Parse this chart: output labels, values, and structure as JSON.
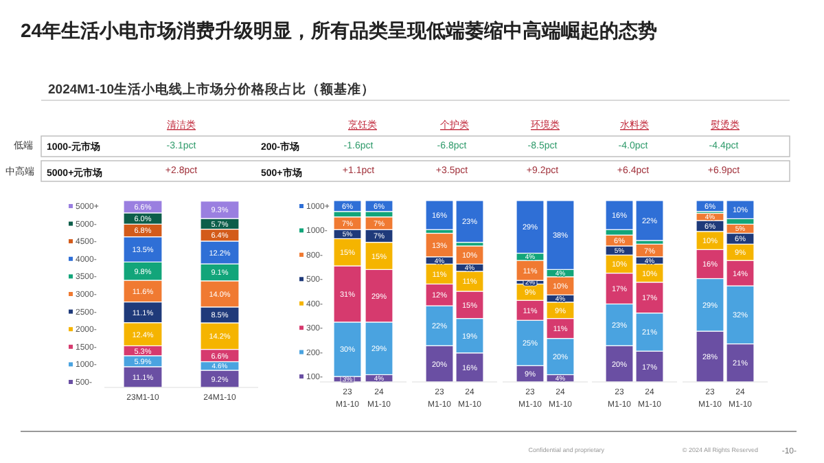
{
  "chart_data": [
    {
      "type": "other",
      "title": "24年生活小电市场消费升级明显，所有品类呈现低端萎缩中高端崛起的态势",
      "subtitle": "2024M1-10生活小电线上市场分价格段占比（额基准）",
      "annotations": [
        "低端",
        "中高端",
        "1000-元市场",
        "5000+元市场",
        "-3.1pct",
        "+2.8pct",
        "200-市场",
        "500+市场",
        "-1.6pct",
        "+1.1pct",
        "-6.8pct",
        "+3.5pct",
        "-8.5pct",
        "+9.2pct",
        "-4.0pct",
        "+6.4pct",
        "-4.4pct",
        "+6.9pct",
        "Confidential and proprietary",
        "© 2024 All Rights Reserved",
        "-10-"
      ]
    },
    {
      "type": "bar",
      "title": "清洁类",
      "categories": [
        "23M1-10",
        "24M1-10"
      ],
      "stacked": true,
      "legend": "left",
      "series": [
        {
          "name": "500-",
          "color": "#6a4fa3",
          "values": [
            11.1,
            9.2
          ],
          "value_labels": [
            "11.1%",
            "9.2%"
          ]
        },
        {
          "name": "1000-",
          "color": "#4aa3e0",
          "values": [
            5.9,
            4.6
          ],
          "value_labels": [
            "5.9%",
            "4.6%"
          ]
        },
        {
          "name": "1500-",
          "color": "#d63a6e",
          "values": [
            5.3,
            6.6
          ],
          "value_labels": [
            "5.3%",
            "6.6%"
          ]
        },
        {
          "name": "2000-",
          "color": "#f5b400",
          "values": [
            12.4,
            14.2
          ],
          "value_labels": [
            "12.4%",
            "14.2%"
          ]
        },
        {
          "name": "2500-",
          "color": "#1f3a7a",
          "values": [
            11.1,
            8.5
          ],
          "value_labels": [
            "11.1%",
            "8.5%"
          ]
        },
        {
          "name": "3000-",
          "color": "#f07a32",
          "values": [
            11.6,
            14.0
          ],
          "value_labels": [
            "11.6%",
            "14.0%"
          ]
        },
        {
          "name": "3500-",
          "color": "#12a57a",
          "values": [
            9.8,
            9.1
          ],
          "value_labels": [
            "9.8%",
            "9.1%"
          ]
        },
        {
          "name": "4000-",
          "color": "#2f6fd6",
          "values": [
            13.5,
            12.2
          ],
          "value_labels": [
            "13.5%",
            "12.2%"
          ]
        },
        {
          "name": "4500-",
          "color": "#d35b1a",
          "values": [
            6.8,
            6.4
          ],
          "value_labels": [
            "6.8%",
            "6.4%"
          ]
        },
        {
          "name": "5000-",
          "color": "#0d5e4a",
          "values": [
            6.0,
            5.7
          ],
          "value_labels": [
            "6.0%",
            "5.7%"
          ]
        },
        {
          "name": "5000+",
          "color": "#9a7fe0",
          "values": [
            6.6,
            9.3
          ],
          "value_labels": [
            "6.6%",
            "9.3%"
          ]
        }
      ]
    },
    {
      "type": "bar",
      "title": "烹饪类",
      "categories": [
        "23 M1-10",
        "24 M1-10"
      ],
      "stacked": true,
      "legend": "left",
      "series": [
        {
          "name": "100-",
          "color": "#6a4fa3",
          "values": [
            3,
            4
          ],
          "value_labels": [
            "3%",
            "4%"
          ]
        },
        {
          "name": "200-",
          "color": "#4aa3e0",
          "values": [
            30,
            29
          ],
          "value_labels": [
            "30%",
            "29%"
          ]
        },
        {
          "name": "300-",
          "color": "#d63a6e",
          "values": [
            31,
            29
          ],
          "value_labels": [
            "31%",
            "29%"
          ]
        },
        {
          "name": "400-",
          "color": "#f5b400",
          "values": [
            15,
            15
          ],
          "value_labels": [
            "15%",
            "15%"
          ]
        },
        {
          "name": "500-",
          "color": "#1f3a7a",
          "values": [
            5,
            7
          ],
          "value_labels": [
            "5%",
            "7%"
          ]
        },
        {
          "name": "800-",
          "color": "#f07a32",
          "values": [
            7,
            7
          ],
          "value_labels": [
            "7%",
            "7%"
          ]
        },
        {
          "name": "1000-",
          "color": "#12a57a",
          "values": [
            3,
            3
          ],
          "value_labels": [
            null,
            null
          ]
        },
        {
          "name": "1000+",
          "color": "#2f6fd6",
          "values": [
            6,
            6
          ],
          "value_labels": [
            "6%",
            "6%"
          ]
        }
      ]
    },
    {
      "type": "bar",
      "title": "个护类",
      "categories": [
        "23 M1-10",
        "24 M1-10"
      ],
      "stacked": true,
      "series": [
        {
          "color": "#6a4fa3",
          "values": [
            20,
            16
          ],
          "value_labels": [
            "20%",
            "16%"
          ]
        },
        {
          "color": "#4aa3e0",
          "values": [
            22,
            19
          ],
          "value_labels": [
            "22%",
            "19%"
          ]
        },
        {
          "color": "#d63a6e",
          "values": [
            12,
            15
          ],
          "value_labels": [
            "12%",
            "15%"
          ]
        },
        {
          "color": "#f5b400",
          "values": [
            11,
            11
          ],
          "value_labels": [
            "11%",
            "11%"
          ]
        },
        {
          "color": "#1f3a7a",
          "values": [
            4,
            4
          ],
          "value_labels": [
            "4%",
            "4%"
          ]
        },
        {
          "color": "#f07a32",
          "values": [
            13,
            10
          ],
          "value_labels": [
            "13%",
            "10%"
          ]
        },
        {
          "color": "#12a57a",
          "values": [
            2,
            2
          ],
          "value_labels": [
            null,
            null
          ]
        },
        {
          "color": "#2f6fd6",
          "values": [
            16,
            23
          ],
          "value_labels": [
            "16%",
            "23%"
          ]
        }
      ]
    },
    {
      "type": "bar",
      "title": "环境类",
      "categories": [
        "23 M1-10",
        "24 M1-10"
      ],
      "stacked": true,
      "series": [
        {
          "color": "#6a4fa3",
          "values": [
            9,
            4
          ],
          "value_labels": [
            "9%",
            "4%"
          ]
        },
        {
          "color": "#4aa3e0",
          "values": [
            25,
            20
          ],
          "value_labels": [
            "25%",
            "20%"
          ]
        },
        {
          "color": "#d63a6e",
          "values": [
            11,
            11
          ],
          "value_labels": [
            "11%",
            "11%"
          ]
        },
        {
          "color": "#f5b400",
          "values": [
            9,
            9
          ],
          "value_labels": [
            "9%",
            "9%"
          ]
        },
        {
          "color": "#1f3a7a",
          "values": [
            2,
            4
          ],
          "value_labels": [
            "2%",
            "4%"
          ]
        },
        {
          "color": "#f07a32",
          "values": [
            11,
            10
          ],
          "value_labels": [
            "11%",
            "10%"
          ]
        },
        {
          "color": "#12a57a",
          "values": [
            4,
            4
          ],
          "value_labels": [
            "4%",
            "4%"
          ]
        },
        {
          "color": "#2f6fd6",
          "values": [
            29,
            38
          ],
          "value_labels": [
            "29%",
            "38%"
          ]
        }
      ]
    },
    {
      "type": "bar",
      "title": "水料类",
      "categories": [
        "23 M1-10",
        "24 M1-10"
      ],
      "stacked": true,
      "series": [
        {
          "color": "#6a4fa3",
          "values": [
            20,
            17
          ],
          "value_labels": [
            "20%",
            "17%"
          ]
        },
        {
          "color": "#4aa3e0",
          "values": [
            23,
            21
          ],
          "value_labels": [
            "23%",
            "21%"
          ]
        },
        {
          "color": "#d63a6e",
          "values": [
            17,
            17
          ],
          "value_labels": [
            "17%",
            "17%"
          ]
        },
        {
          "color": "#f5b400",
          "values": [
            10,
            10
          ],
          "value_labels": [
            "10%",
            "10%"
          ]
        },
        {
          "color": "#1f3a7a",
          "values": [
            5,
            4
          ],
          "value_labels": [
            "5%",
            "4%"
          ]
        },
        {
          "color": "#f07a32",
          "values": [
            6,
            7
          ],
          "value_labels": [
            "6%",
            "7%"
          ]
        },
        {
          "color": "#12a57a",
          "values": [
            3,
            2
          ],
          "value_labels": [
            null,
            null
          ]
        },
        {
          "color": "#2f6fd6",
          "values": [
            16,
            22
          ],
          "value_labels": [
            "16%",
            "22%"
          ]
        }
      ]
    },
    {
      "type": "bar",
      "title": "熨烫类",
      "categories": [
        "23 M1-10",
        "24 M1-10"
      ],
      "stacked": true,
      "series": [
        {
          "color": "#6a4fa3",
          "values": [
            28,
            21
          ],
          "value_labels": [
            "28%",
            "21%"
          ]
        },
        {
          "color": "#4aa3e0",
          "values": [
            29,
            32
          ],
          "value_labels": [
            "29%",
            "32%"
          ]
        },
        {
          "color": "#d63a6e",
          "values": [
            16,
            14
          ],
          "value_labels": [
            "16%",
            "14%"
          ]
        },
        {
          "color": "#f5b400",
          "values": [
            10,
            9
          ],
          "value_labels": [
            "10%",
            "9%"
          ]
        },
        {
          "color": "#1f3a7a",
          "values": [
            6,
            6
          ],
          "value_labels": [
            "6%",
            "6%"
          ]
        },
        {
          "color": "#f07a32",
          "values": [
            4,
            5
          ],
          "value_labels": [
            "4%",
            "5%"
          ]
        },
        {
          "color": "#12a57a",
          "values": [
            1,
            3
          ],
          "value_labels": [
            null,
            null
          ]
        },
        {
          "color": "#2f6fd6",
          "values": [
            6,
            10
          ],
          "value_labels": [
            "6%",
            "10%"
          ]
        }
      ]
    }
  ]
}
